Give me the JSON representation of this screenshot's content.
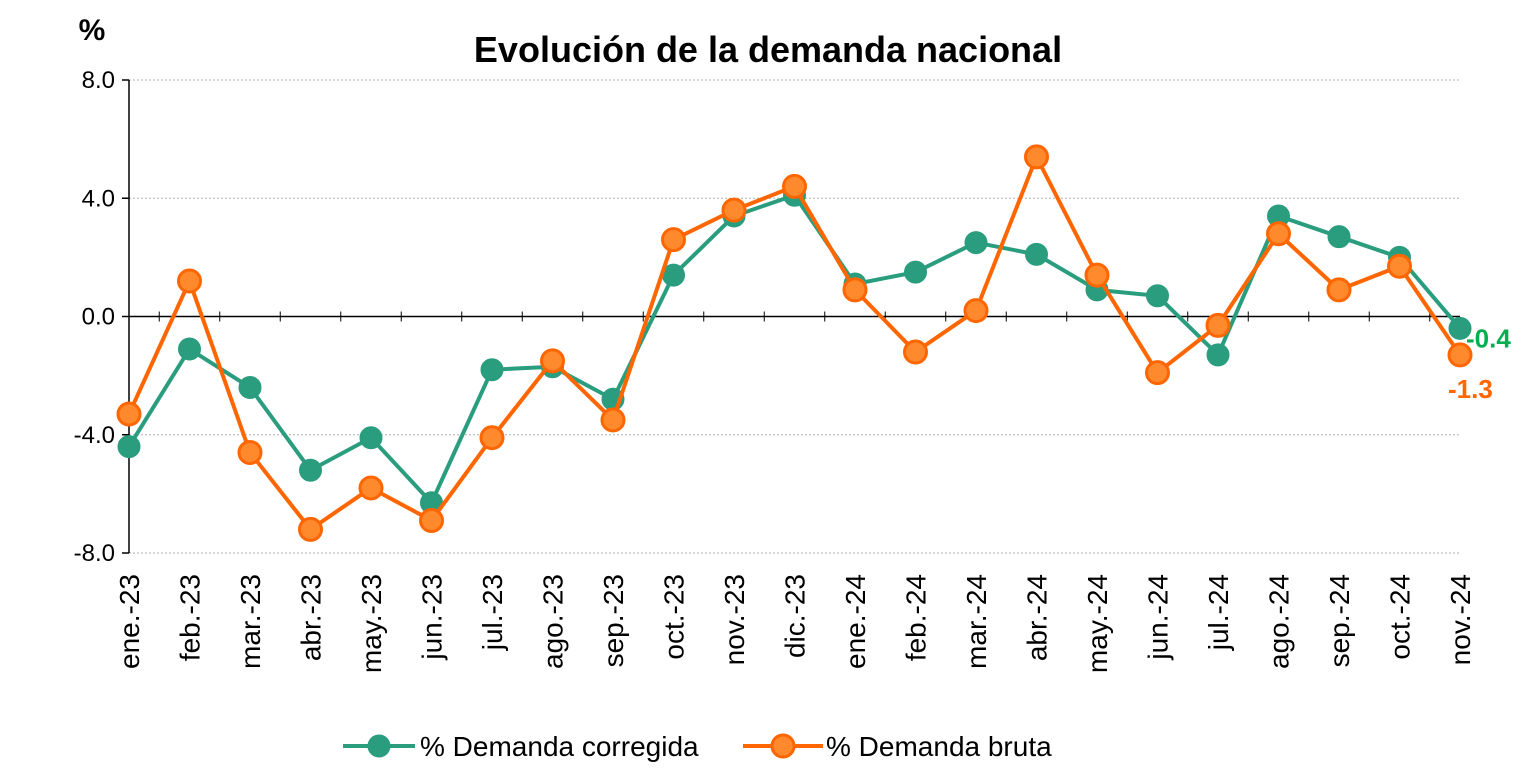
{
  "chart_data": {
    "type": "line",
    "title": "Evolución de la demanda nacional",
    "ylabel": "%",
    "xlabel": "",
    "ylim": [
      -8,
      8
    ],
    "yticks": [
      "8.0",
      "4.0",
      "0.0",
      "-4.0",
      "-8.0"
    ],
    "ytick_values": [
      8,
      4,
      0,
      -4,
      -8
    ],
    "grid": true,
    "legend_position": "bottom",
    "categories": [
      "ene.-23",
      "feb.-23",
      "mar.-23",
      "abr.-23",
      "may.-23",
      "jun.-23",
      "jul.-23",
      "ago.-23",
      "sep.-23",
      "oct.-23",
      "nov.-23",
      "dic.-23",
      "ene.-24",
      "feb.-24",
      "mar.-24",
      "abr.-24",
      "may.-24",
      "jun.-24",
      "jul.-24",
      "ago.-24",
      "sep.-24",
      "oct.-24",
      "nov.-24"
    ],
    "series": [
      {
        "name": "% Demanda corregida",
        "color": "#2a9d7f",
        "values": [
          -4.4,
          -1.1,
          -2.4,
          -5.2,
          -4.1,
          -6.3,
          -1.8,
          -1.7,
          -2.8,
          1.4,
          3.4,
          4.1,
          1.1,
          1.5,
          2.5,
          2.1,
          0.9,
          0.7,
          -1.3,
          3.4,
          2.7,
          2.0,
          -0.4
        ],
        "end_label": "-0.4",
        "end_label_color": "#00b050"
      },
      {
        "name": "% Demanda bruta",
        "color": "#ff6600",
        "values": [
          -3.3,
          1.2,
          -4.6,
          -7.2,
          -5.8,
          -6.9,
          -4.1,
          -1.5,
          -3.5,
          2.6,
          3.6,
          4.4,
          0.9,
          -1.2,
          0.2,
          5.4,
          1.4,
          -1.9,
          -0.3,
          2.8,
          0.9,
          1.7,
          -1.3
        ],
        "end_label": "-1.3",
        "end_label_color": "#ff6600"
      }
    ]
  }
}
